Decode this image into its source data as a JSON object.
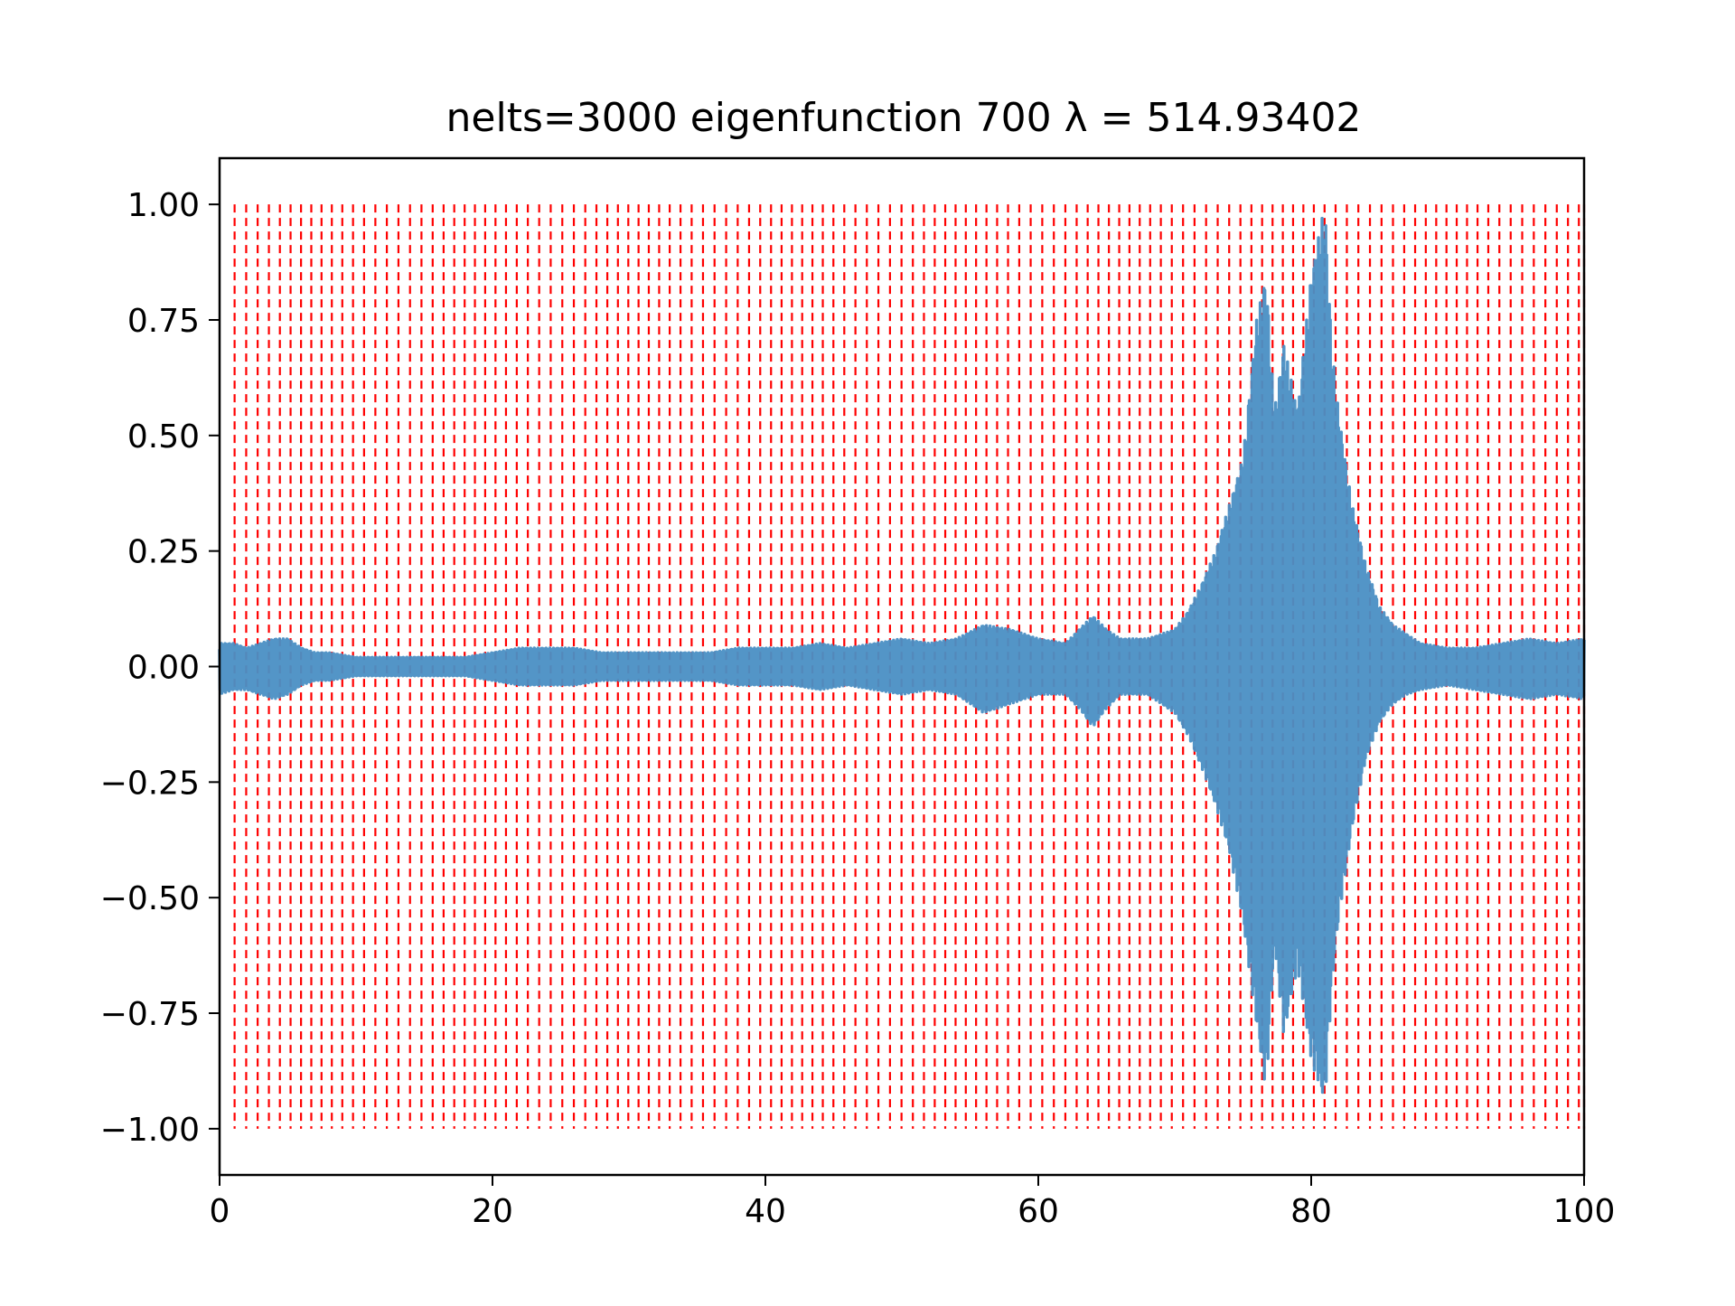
{
  "chart_data": {
    "type": "line",
    "title": "nelts=3000  eigenfunction 700  λ = 514.93402",
    "xlabel": "",
    "ylabel": "",
    "xlim": [
      0,
      100
    ],
    "ylim": [
      -1.1,
      1.1
    ],
    "x_ticks": [
      0,
      20,
      40,
      60,
      80,
      100
    ],
    "x_tick_labels": [
      "0",
      "20",
      "40",
      "60",
      "80",
      "100"
    ],
    "y_ticks": [
      -1.0,
      -0.75,
      -0.5,
      -0.25,
      0.0,
      0.25,
      0.5,
      0.75,
      1.0
    ],
    "y_tick_labels": [
      "−1.00",
      "−0.75",
      "−0.50",
      "−0.25",
      "0.00",
      "0.25",
      "0.50",
      "0.75",
      "1.00"
    ],
    "grid": false,
    "legend": "none",
    "series_color": "#4a8fc4",
    "marker_color": "#ff0000",
    "eigenfunction_envelope": {
      "x": [
        0,
        1,
        2,
        3,
        4,
        5,
        6,
        7,
        8,
        10,
        12,
        14,
        16,
        18,
        20,
        22,
        24,
        26,
        28,
        30,
        32,
        34,
        36,
        38,
        40,
        42,
        44,
        46,
        48,
        50,
        52,
        54,
        56,
        58,
        60,
        62,
        63,
        64,
        65,
        66,
        68,
        70,
        71,
        72,
        73,
        74,
        75,
        76,
        76.7,
        77.3,
        78,
        79,
        80,
        81,
        81.5,
        82,
        83,
        84,
        85,
        86,
        87,
        88,
        90,
        92,
        94,
        96,
        98,
        100
      ],
      "upper": [
        0.05,
        0.05,
        0.04,
        0.05,
        0.06,
        0.06,
        0.04,
        0.03,
        0.03,
        0.02,
        0.02,
        0.02,
        0.02,
        0.02,
        0.03,
        0.04,
        0.04,
        0.04,
        0.03,
        0.03,
        0.03,
        0.03,
        0.03,
        0.04,
        0.04,
        0.04,
        0.05,
        0.04,
        0.05,
        0.06,
        0.05,
        0.06,
        0.09,
        0.08,
        0.06,
        0.05,
        0.08,
        0.11,
        0.08,
        0.06,
        0.06,
        0.08,
        0.12,
        0.18,
        0.25,
        0.35,
        0.45,
        0.75,
        0.85,
        0.55,
        0.7,
        0.55,
        0.85,
        1.0,
        0.7,
        0.55,
        0.35,
        0.22,
        0.13,
        0.09,
        0.07,
        0.05,
        0.04,
        0.04,
        0.05,
        0.06,
        0.05,
        0.06
      ],
      "lower": [
        -0.06,
        -0.05,
        -0.05,
        -0.06,
        -0.07,
        -0.06,
        -0.04,
        -0.03,
        -0.03,
        -0.02,
        -0.02,
        -0.02,
        -0.02,
        -0.02,
        -0.03,
        -0.04,
        -0.04,
        -0.04,
        -0.03,
        -0.03,
        -0.03,
        -0.03,
        -0.03,
        -0.04,
        -0.04,
        -0.04,
        -0.05,
        -0.04,
        -0.05,
        -0.06,
        -0.05,
        -0.06,
        -0.1,
        -0.08,
        -0.06,
        -0.06,
        -0.09,
        -0.13,
        -0.09,
        -0.06,
        -0.06,
        -0.1,
        -0.15,
        -0.22,
        -0.3,
        -0.4,
        -0.55,
        -0.78,
        -0.92,
        -0.6,
        -0.8,
        -0.65,
        -0.85,
        -0.95,
        -0.7,
        -0.55,
        -0.35,
        -0.2,
        -0.12,
        -0.08,
        -0.06,
        -0.05,
        -0.04,
        -0.05,
        -0.06,
        -0.07,
        -0.06,
        -0.07
      ]
    },
    "element_boundaries": {
      "x_start": 1.1,
      "x_end": 100,
      "approx_spacing": 0.8,
      "y_range": [
        -1.0,
        1.0
      ],
      "style": "dashed"
    }
  }
}
